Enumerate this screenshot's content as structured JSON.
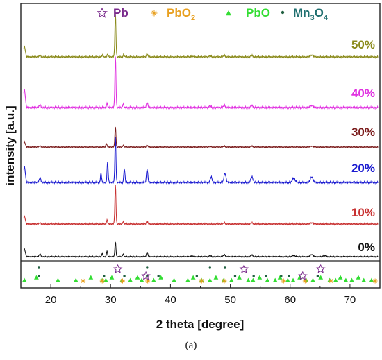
{
  "chart_data": {
    "type": "line",
    "xlabel": "2 theta [degree]",
    "ylabel": "intensity [a.u.]",
    "xlim": [
      15,
      75
    ],
    "xticks": [
      20,
      30,
      40,
      50,
      60,
      70
    ],
    "grid": false,
    "legend_position": "top",
    "legend": [
      {
        "name": "Pb",
        "marker": "star",
        "color": "#7a2a8c"
      },
      {
        "name": "PbO",
        "sub": "2",
        "marker": "asterisk",
        "color": "#e8a020"
      },
      {
        "name": "PbO",
        "marker": "triangle",
        "color": "#33dd33"
      },
      {
        "name": "Mn",
        "sub": "3",
        "name2": "O",
        "sub2": "4",
        "marker": "dot",
        "color": "#1f6f6f"
      }
    ],
    "series": [
      {
        "name": "50%",
        "color": "#8a8a1a",
        "peaks": [
          [
            15.6,
            0.24
          ],
          [
            18.2,
            0.03
          ],
          [
            28.6,
            0.04
          ],
          [
            29.5,
            0.06
          ],
          [
            30.8,
            1.0
          ],
          [
            32.2,
            0.05
          ],
          [
            36.1,
            0.06
          ],
          [
            43.6,
            0.02
          ],
          [
            46.6,
            0.03
          ],
          [
            49.0,
            0.03
          ],
          [
            53.6,
            0.03
          ],
          [
            63.6,
            0.04
          ]
        ]
      },
      {
        "name": "40%",
        "color": "#e030e0",
        "peaks": [
          [
            15.6,
            0.35
          ],
          [
            18.2,
            0.05
          ],
          [
            29.4,
            0.08
          ],
          [
            30.8,
            1.0
          ],
          [
            32.1,
            0.07
          ],
          [
            36.1,
            0.1
          ],
          [
            46.6,
            0.04
          ],
          [
            49.0,
            0.04
          ],
          [
            53.6,
            0.04
          ],
          [
            63.6,
            0.04
          ]
        ]
      },
      {
        "name": "30%",
        "color": "#7a1a1a",
        "peaks": [
          [
            15.6,
            0.18
          ],
          [
            18.2,
            0.04
          ],
          [
            29.3,
            0.12
          ],
          [
            30.8,
            0.72
          ],
          [
            32.1,
            0.06
          ],
          [
            36.1,
            0.06
          ],
          [
            46.6,
            0.03
          ],
          [
            49.0,
            0.03
          ],
          [
            53.6,
            0.03
          ],
          [
            63.6,
            0.03
          ]
        ]
      },
      {
        "name": "20%",
        "color": "#1a1ad0",
        "peaks": [
          [
            15.6,
            0.35
          ],
          [
            18.2,
            0.1
          ],
          [
            28.4,
            0.2
          ],
          [
            29.5,
            0.45
          ],
          [
            30.8,
            1.0
          ],
          [
            32.3,
            0.3
          ],
          [
            36.1,
            0.3
          ],
          [
            46.8,
            0.12
          ],
          [
            49.1,
            0.2
          ],
          [
            53.6,
            0.12
          ],
          [
            60.6,
            0.1
          ],
          [
            63.6,
            0.12
          ]
        ]
      },
      {
        "name": "10%",
        "color": "#c83232",
        "peaks": [
          [
            15.6,
            0.2
          ],
          [
            18.2,
            0.03
          ],
          [
            29.4,
            0.1
          ],
          [
            30.8,
            1.0
          ],
          [
            32.1,
            0.06
          ],
          [
            36.1,
            0.07
          ],
          [
            49.0,
            0.03
          ],
          [
            53.6,
            0.03
          ],
          [
            63.6,
            0.03
          ]
        ]
      },
      {
        "name": "0%",
        "color": "#111111",
        "peaks": [
          [
            15.6,
            0.28
          ],
          [
            18.2,
            0.1
          ],
          [
            28.6,
            0.12
          ],
          [
            29.4,
            0.2
          ],
          [
            30.8,
            0.55
          ],
          [
            32.1,
            0.1
          ],
          [
            36.1,
            0.16
          ],
          [
            43.6,
            0.04
          ],
          [
            46.6,
            0.05
          ],
          [
            49.0,
            0.07
          ],
          [
            53.6,
            0.06
          ],
          [
            60.6,
            0.05
          ],
          [
            63.6,
            0.08
          ],
          [
            65.7,
            0.04
          ]
        ]
      }
    ],
    "markers": {
      "Pb": [
        31.2,
        35.9,
        52.3,
        62.1,
        65.1
      ],
      "PbO2": [
        25.4,
        28.6,
        32.0,
        36.2,
        45.2,
        49.0,
        58.9,
        62.5,
        66.8,
        74.2
      ],
      "PbO": [
        15.6,
        17.6,
        21.2,
        24.2,
        26.7,
        28.6,
        29.2,
        30.2,
        31.9,
        33.3,
        34.5,
        35.2,
        37.2,
        38.4,
        40.6,
        42.9,
        43.8,
        45.2,
        46.6,
        47.6,
        48.9,
        50.2,
        51.5,
        53.0,
        53.8,
        54.9,
        56.2,
        57.5,
        58.3,
        59.6,
        60.5,
        61.6,
        62.7,
        63.8,
        65.1,
        66.6,
        67.6,
        68.4,
        69.3,
        70.3,
        71.4,
        72.3,
        73.6
      ],
      "Mn3O4": [
        18.0,
        28.9,
        32.3,
        36.1,
        38.0,
        44.4,
        50.8,
        53.9,
        56.0,
        58.5,
        59.8,
        64.6
      ],
      "Mn3O4_upper": [
        18.0,
        36.1,
        46.6,
        49.1
      ]
    }
  },
  "caption": "(a)"
}
